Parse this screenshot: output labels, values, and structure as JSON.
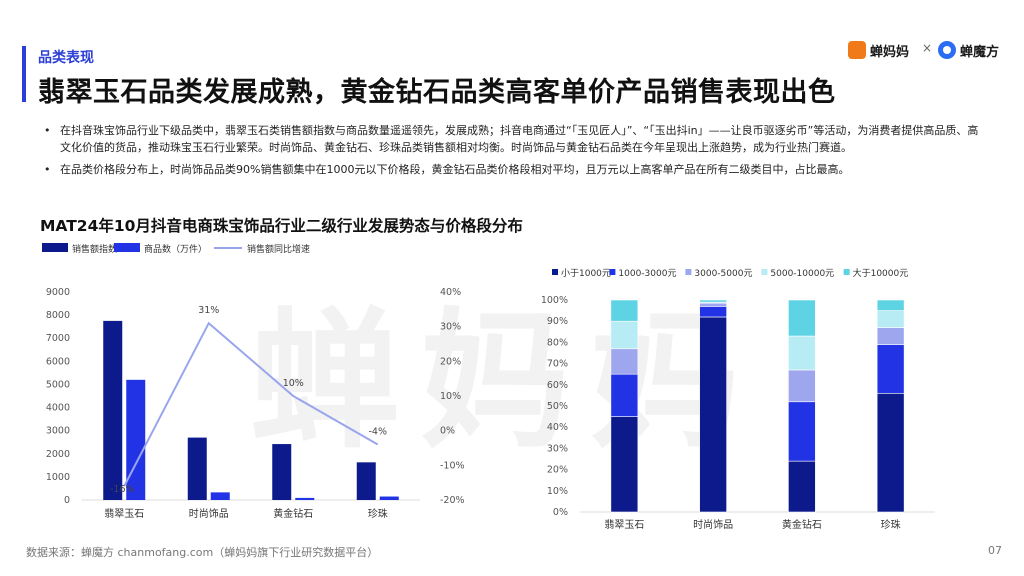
{
  "header": {
    "section_label": "品类表现",
    "title": "翡翠玉石品类发展成熟，黄金钻石品类高客单价产品销售表现出色",
    "logo_left": "蝉妈妈",
    "logo_sep": "×",
    "logo_right": "蝉魔方"
  },
  "watermark": "蝉妈妈",
  "bullets": [
    "在抖音珠宝饰品行业下级品类中，翡翠玉石类销售额指数与商品数量遥遥领先，发展成熟；抖音电商通过“「玉见匠人」”、“「玉出抖in」——让良币驱逐劣币”等活动，为消费者提供高品质、高文化价值的货品，推动珠宝玉石行业繁荣。时尚饰品、黄金钻石、珍珠品类销售额相对均衡。时尚饰品与黄金钻石品类在今年呈现出上涨趋势，成为行业热门赛道。",
    "在品类价格段分布上，时尚饰品品类90%销售额集中在1000元以下价格段，黄金钻石品类价格段相对平均，且万元以上高客单产品在所有二级类目中，占比最高。"
  ],
  "chart_title": "MAT24年10月抖音电商珠宝饰品行业二级行业发展势态与价格段分布",
  "footer": "数据来源：蝉魔方 chanmofang.com（蝉妈妈旗下行业研究数据平台）",
  "page_number": "07",
  "chart_data": [
    {
      "type": "bar",
      "categories": [
        "翡翠玉石",
        "时尚饰品",
        "黄金钻石",
        "珍珠"
      ],
      "series": [
        {
          "name": "销售额指数",
          "values": [
            7750,
            2700,
            2420,
            1630
          ],
          "color": "#0d1a8c"
        },
        {
          "name": "商品数（万件）",
          "values": [
            5200,
            330,
            90,
            150
          ],
          "color": "#2233e6"
        },
        {
          "name": "销售额同比增速",
          "type": "line",
          "axis": "right",
          "values": [
            -16,
            31,
            10,
            -4
          ],
          "labels": [
            "-16%",
            "31%",
            "10%",
            "-4%"
          ],
          "color": "#99a6ee"
        }
      ],
      "y_left": {
        "min": 0,
        "max": 9000,
        "ticks": [
          "0",
          "1000",
          "2000",
          "3000",
          "4000",
          "5000",
          "6000",
          "7000",
          "8000",
          "9000"
        ]
      },
      "y_right": {
        "min": -20,
        "max": 40,
        "ticks": [
          "-20%",
          "-10%",
          "0%",
          "10%",
          "20%",
          "30%",
          "40%"
        ]
      },
      "legend": "top-left"
    },
    {
      "type": "bar",
      "stacked": true,
      "categories": [
        "翡翠玉石",
        "时尚饰品",
        "黄金钻石",
        "珍珠"
      ],
      "series": [
        {
          "name": "小于1000元",
          "values": [
            45,
            92,
            24,
            56
          ],
          "color": "#0d1a8c"
        },
        {
          "name": "1000-3000元",
          "values": [
            20,
            5,
            28,
            23
          ],
          "color": "#2233e6"
        },
        {
          "name": "3000-5000元",
          "values": [
            12,
            1.5,
            15,
            8
          ],
          "color": "#9ea7ee"
        },
        {
          "name": "5000-10000元",
          "values": [
            13,
            0.5,
            16,
            8
          ],
          "color": "#b7ecf4"
        },
        {
          "name": "大于10000元",
          "values": [
            10,
            1,
            17,
            5
          ],
          "color": "#5ed3e4"
        }
      ],
      "y": {
        "min": 0,
        "max": 100,
        "ticks": [
          "0%",
          "10%",
          "20%",
          "30%",
          "40%",
          "50%",
          "60%",
          "70%",
          "80%",
          "90%",
          "100%"
        ]
      },
      "legend": "top"
    }
  ]
}
